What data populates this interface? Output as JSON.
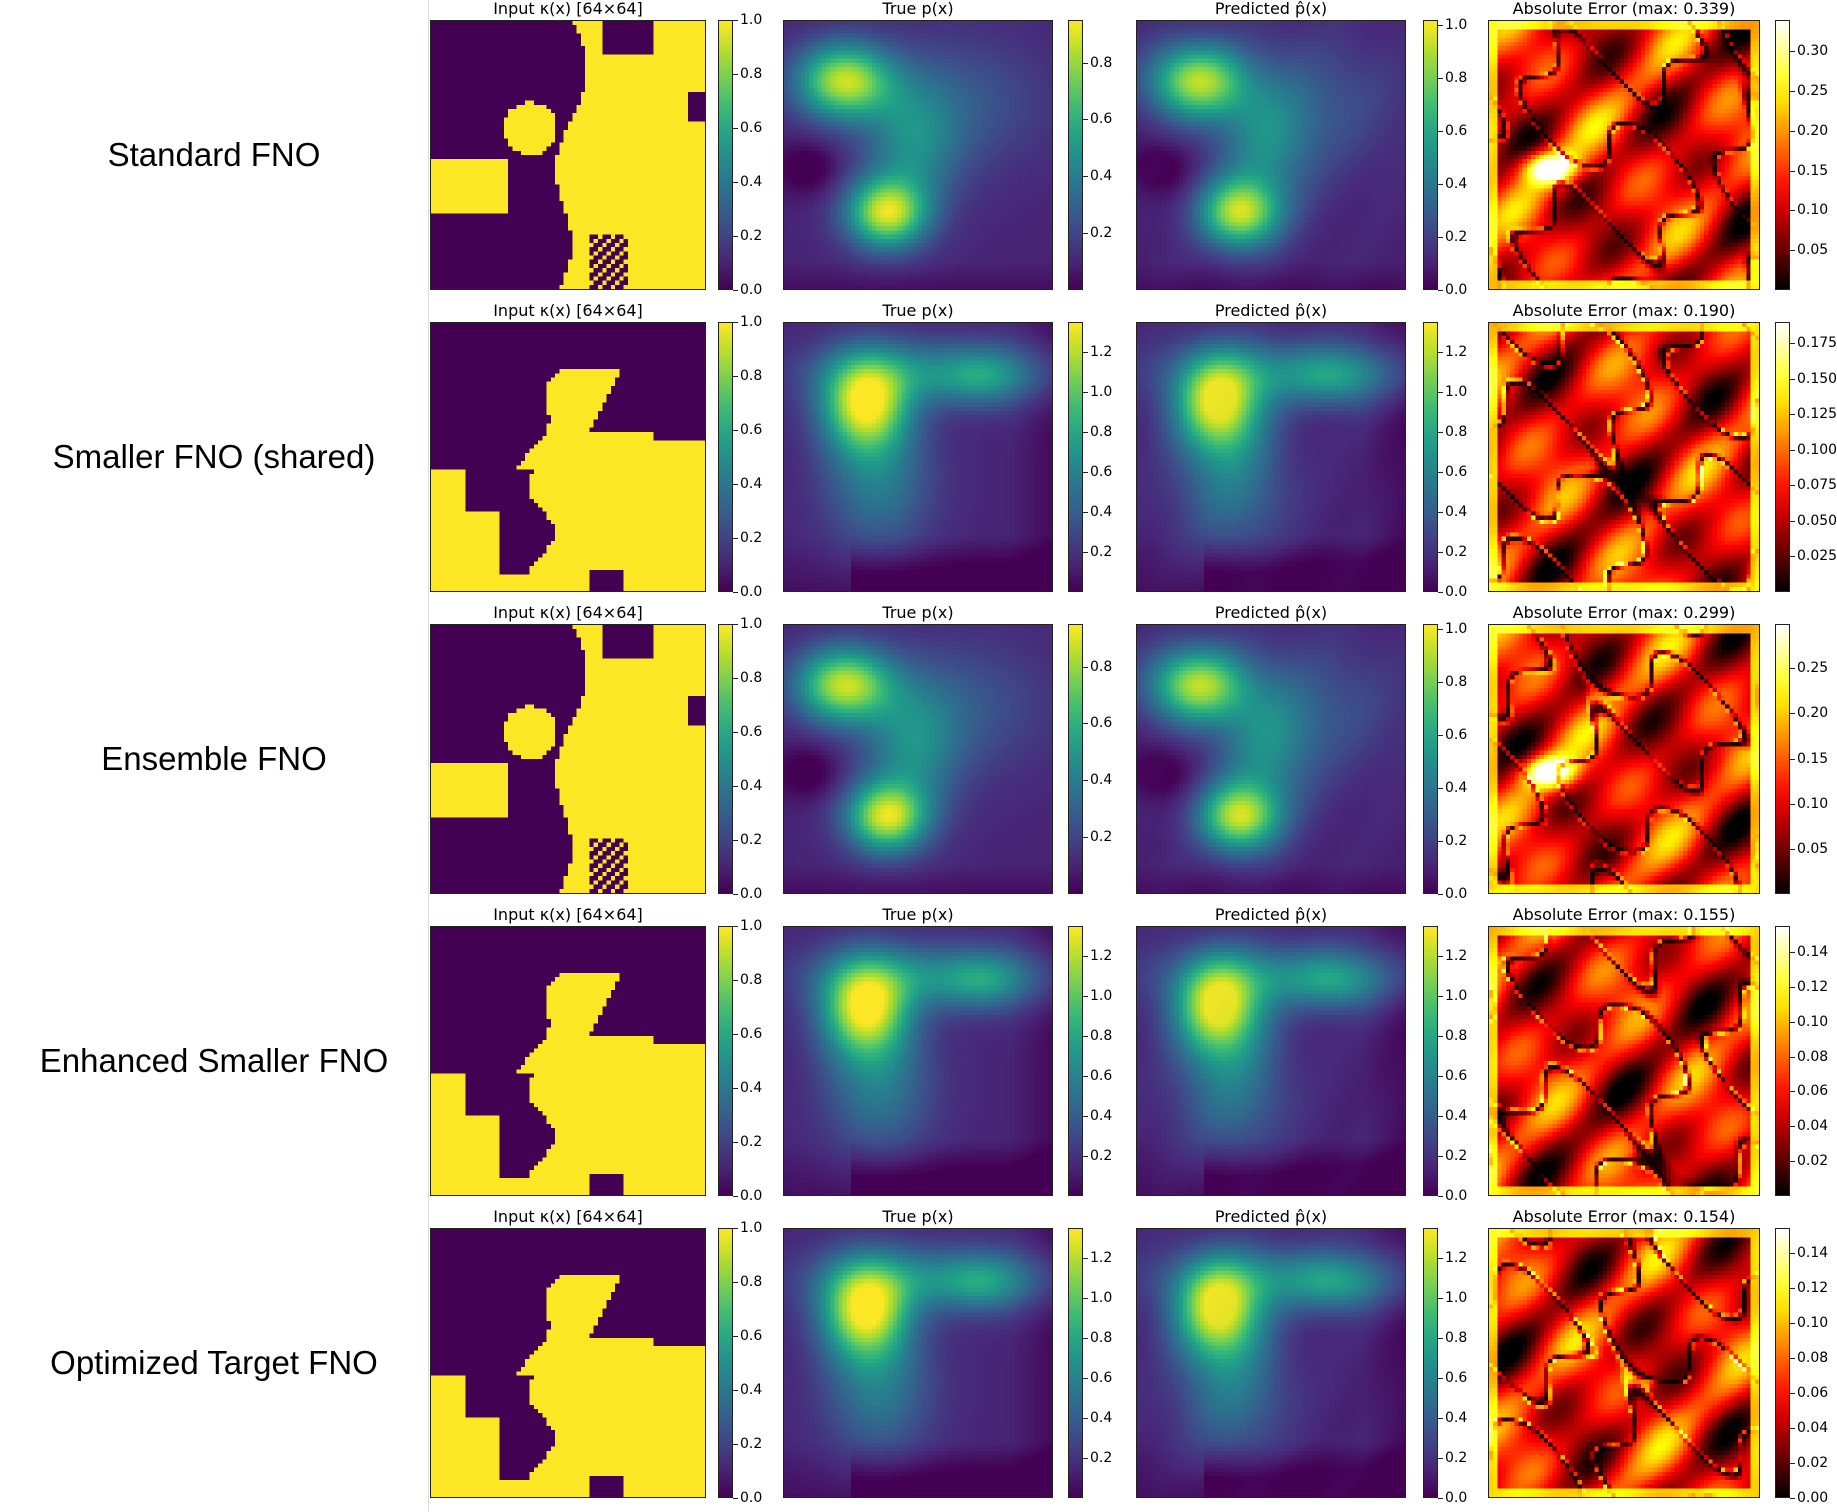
{
  "rows": [
    {
      "label": "Standard FNO",
      "input_title": "Input κ(x) [64×64]",
      "true_title": "True p(x)",
      "pred_title": "Predicted p̂(x)",
      "error_title": "Absolute Error (max: 0.339)",
      "input_cbar": [
        "0.0",
        "0.2",
        "0.4",
        "0.6",
        "0.8",
        "1.0"
      ],
      "true_cbar": [
        "0.2",
        "0.4",
        "0.6",
        "0.8"
      ],
      "pred_cbar": [
        "0.0",
        "0.2",
        "0.4",
        "0.6",
        "0.8",
        "1.0"
      ],
      "error_cbar": [
        "0.05",
        "0.10",
        "0.15",
        "0.20",
        "0.25",
        "0.30"
      ]
    },
    {
      "label": "Smaller FNO (shared)",
      "input_title": "Input κ(x) [64×64]",
      "true_title": "True p(x)",
      "pred_title": "Predicted p̂(x)",
      "error_title": "Absolute Error (max: 0.190)",
      "input_cbar": [
        "0.0",
        "0.2",
        "0.4",
        "0.6",
        "0.8",
        "1.0"
      ],
      "true_cbar": [
        "0.2",
        "0.4",
        "0.6",
        "0.8",
        "1.0",
        "1.2"
      ],
      "pred_cbar": [
        "0.0",
        "0.2",
        "0.4",
        "0.6",
        "0.8",
        "1.0",
        "1.2"
      ],
      "error_cbar": [
        "0.025",
        "0.050",
        "0.075",
        "0.100",
        "0.125",
        "0.150",
        "0.175"
      ]
    },
    {
      "label": "Ensemble FNO",
      "input_title": "Input κ(x) [64×64]",
      "true_title": "True p(x)",
      "pred_title": "Predicted p̂(x)",
      "error_title": "Absolute Error (max: 0.299)",
      "input_cbar": [
        "0.0",
        "0.2",
        "0.4",
        "0.6",
        "0.8",
        "1.0"
      ],
      "true_cbar": [
        "0.2",
        "0.4",
        "0.6",
        "0.8"
      ],
      "pred_cbar": [
        "0.0",
        "0.2",
        "0.4",
        "0.6",
        "0.8",
        "1.0"
      ],
      "error_cbar": [
        "0.05",
        "0.10",
        "0.15",
        "0.20",
        "0.25"
      ]
    },
    {
      "label": "Enhanced Smaller FNO",
      "input_title": "Input κ(x) [64×64]",
      "true_title": "True p(x)",
      "pred_title": "Predicted p̂(x)",
      "error_title": "Absolute Error (max: 0.155)",
      "input_cbar": [
        "0.0",
        "0.2",
        "0.4",
        "0.6",
        "0.8",
        "1.0"
      ],
      "true_cbar": [
        "0.2",
        "0.4",
        "0.6",
        "0.8",
        "1.0",
        "1.2"
      ],
      "pred_cbar": [
        "0.0",
        "0.2",
        "0.4",
        "0.6",
        "0.8",
        "1.0",
        "1.2"
      ],
      "error_cbar": [
        "0.02",
        "0.04",
        "0.06",
        "0.08",
        "0.10",
        "0.12",
        "0.14"
      ]
    },
    {
      "label": "Optimized Target FNO",
      "input_title": "Input κ(x) [64×64]",
      "true_title": "True p(x)",
      "pred_title": "Predicted p̂(x)",
      "error_title": "Absolute Error (max: 0.154)",
      "input_cbar": [
        "0.0",
        "0.2",
        "0.4",
        "0.6",
        "0.8",
        "1.0"
      ],
      "true_cbar": [
        "0.2",
        "0.4",
        "0.6",
        "0.8",
        "1.0",
        "1.2"
      ],
      "pred_cbar": [
        "0.0",
        "0.2",
        "0.4",
        "0.6",
        "0.8",
        "1.0",
        "1.2"
      ],
      "error_cbar": [
        "0.00",
        "0.02",
        "0.04",
        "0.06",
        "0.08",
        "0.10",
        "0.12",
        "0.14"
      ]
    }
  ],
  "chart_data": {
    "type": "heatmap",
    "grid_size": [
      64,
      64
    ],
    "colormaps": {
      "input": "viridis",
      "true": "viridis",
      "predicted": "viridis",
      "error": "hot"
    },
    "panels": [
      {
        "model": "Standard FNO",
        "input_range": [
          0.0,
          1.0
        ],
        "true_range": [
          0.0,
          0.95
        ],
        "predicted_range": [
          0.0,
          1.02
        ],
        "error_max": 0.339,
        "error_range": [
          0.0,
          0.339
        ]
      },
      {
        "model": "Smaller FNO (shared)",
        "input_range": [
          0.0,
          1.0
        ],
        "true_range": [
          0.0,
          1.35
        ],
        "predicted_range": [
          0.0,
          1.35
        ],
        "error_max": 0.19,
        "error_range": [
          0.0,
          0.19
        ]
      },
      {
        "model": "Ensemble FNO",
        "input_range": [
          0.0,
          1.0
        ],
        "true_range": [
          0.0,
          0.95
        ],
        "predicted_range": [
          0.0,
          1.02
        ],
        "error_max": 0.299,
        "error_range": [
          0.0,
          0.299
        ]
      },
      {
        "model": "Enhanced Smaller FNO",
        "input_range": [
          0.0,
          1.0
        ],
        "true_range": [
          0.0,
          1.35
        ],
        "predicted_range": [
          0.0,
          1.35
        ],
        "error_max": 0.155,
        "error_range": [
          0.0,
          0.155
        ]
      },
      {
        "model": "Optimized Target FNO",
        "input_range": [
          0.0,
          1.0
        ],
        "true_range": [
          0.0,
          1.35
        ],
        "predicted_range": [
          0.0,
          1.35
        ],
        "error_max": 0.154,
        "error_range": [
          0.0,
          0.154
        ]
      }
    ]
  }
}
